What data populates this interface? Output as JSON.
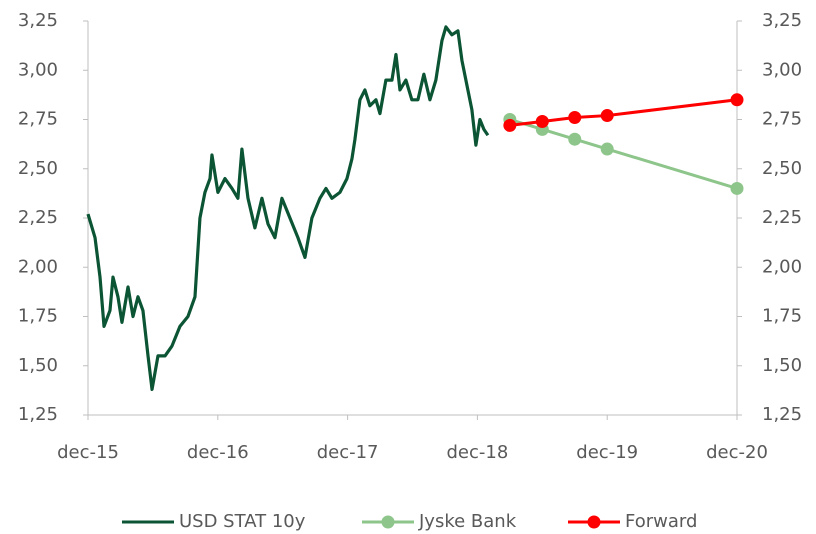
{
  "chart_data": {
    "type": "line",
    "xlim": [
      0,
      60
    ],
    "xticks": [
      {
        "value": 0,
        "label": "dec-15"
      },
      {
        "value": 12,
        "label": "dec-16"
      },
      {
        "value": 24,
        "label": "dec-17"
      },
      {
        "value": 36,
        "label": "dec-18"
      },
      {
        "value": 48,
        "label": "dec-19"
      },
      {
        "value": 60,
        "label": "dec-20"
      }
    ],
    "ylim": [
      1.25,
      3.25
    ],
    "yticks": [
      {
        "value": 1.25,
        "label": "1,25"
      },
      {
        "value": 1.5,
        "label": "1,50"
      },
      {
        "value": 1.75,
        "label": "1,75"
      },
      {
        "value": 2.0,
        "label": "2,00"
      },
      {
        "value": 2.25,
        "label": "2,25"
      },
      {
        "value": 2.5,
        "label": "2,50"
      },
      {
        "value": 2.75,
        "label": "2,75"
      },
      {
        "value": 3.0,
        "label": "3,00"
      },
      {
        "value": 3.25,
        "label": "3,25"
      }
    ],
    "y2lim": [
      1.25,
      3.25
    ],
    "y2ticks": [
      {
        "value": 1.25,
        "label": "1,25"
      },
      {
        "value": 1.5,
        "label": "1,50"
      },
      {
        "value": 1.75,
        "label": "1,75"
      },
      {
        "value": 2.0,
        "label": "2,00"
      },
      {
        "value": 2.25,
        "label": "2,25"
      },
      {
        "value": 2.5,
        "label": "2,50"
      },
      {
        "value": 2.75,
        "label": "2,75"
      },
      {
        "value": 3.0,
        "label": "3,00"
      },
      {
        "value": 3.25,
        "label": "3,25"
      }
    ],
    "grid": false,
    "legend": "bottom",
    "series": [
      {
        "name": "USD STAT 10y",
        "color": "#0b5434",
        "marker": false,
        "x": [
          0,
          0.65,
          1.11,
          1.48,
          2.03,
          2.31,
          2.77,
          3.14,
          3.7,
          4.16,
          4.62,
          5.08,
          5.55,
          5.92,
          6.47,
          7.12,
          7.76,
          8.5,
          9.24,
          9.89,
          10.35,
          10.81,
          11.28,
          11.46,
          12.01,
          12.66,
          13.31,
          13.86,
          14.23,
          14.79,
          15.43,
          16.08,
          16.64,
          17.28,
          17.93,
          18.67,
          19.41,
          20.06,
          20.7,
          21.44,
          22,
          22.55,
          23.29,
          23.94,
          24.4,
          24.68,
          25.14,
          25.6,
          26.06,
          26.62,
          26.99,
          27.54,
          28.1,
          28.47,
          28.84,
          29.39,
          29.94,
          30.5,
          31.05,
          31.61,
          32.16,
          32.72,
          33.09,
          33.64,
          34.2,
          34.57,
          35.12,
          35.49,
          35.86,
          36.23,
          36.6,
          36.97
        ],
        "values": [
          2.27,
          2.15,
          1.95,
          1.7,
          1.78,
          1.95,
          1.85,
          1.72,
          1.9,
          1.75,
          1.85,
          1.78,
          1.55,
          1.38,
          1.55,
          1.55,
          1.6,
          1.7,
          1.75,
          1.85,
          2.25,
          2.38,
          2.45,
          2.57,
          2.38,
          2.45,
          2.4,
          2.35,
          2.6,
          2.35,
          2.2,
          2.35,
          2.22,
          2.15,
          2.35,
          2.25,
          2.15,
          2.05,
          2.25,
          2.35,
          2.4,
          2.35,
          2.38,
          2.45,
          2.55,
          2.65,
          2.85,
          2.9,
          2.82,
          2.85,
          2.78,
          2.95,
          2.95,
          3.08,
          2.9,
          2.95,
          2.85,
          2.85,
          2.98,
          2.85,
          2.95,
          3.15,
          3.22,
          3.18,
          3.2,
          3.05,
          2.9,
          2.8,
          2.62,
          2.75,
          2.7,
          2.67
        ]
      },
      {
        "name": "Jyske Bank",
        "color": "#8dc58b",
        "marker": true,
        "x": [
          39,
          42,
          45,
          48,
          60
        ],
        "values": [
          2.75,
          2.7,
          2.65,
          2.6,
          2.4
        ]
      },
      {
        "name": "Forward",
        "color": "#ff0000",
        "marker": true,
        "x": [
          39,
          42,
          45,
          48,
          60
        ],
        "values": [
          2.72,
          2.74,
          2.76,
          2.77,
          2.85
        ]
      }
    ]
  }
}
